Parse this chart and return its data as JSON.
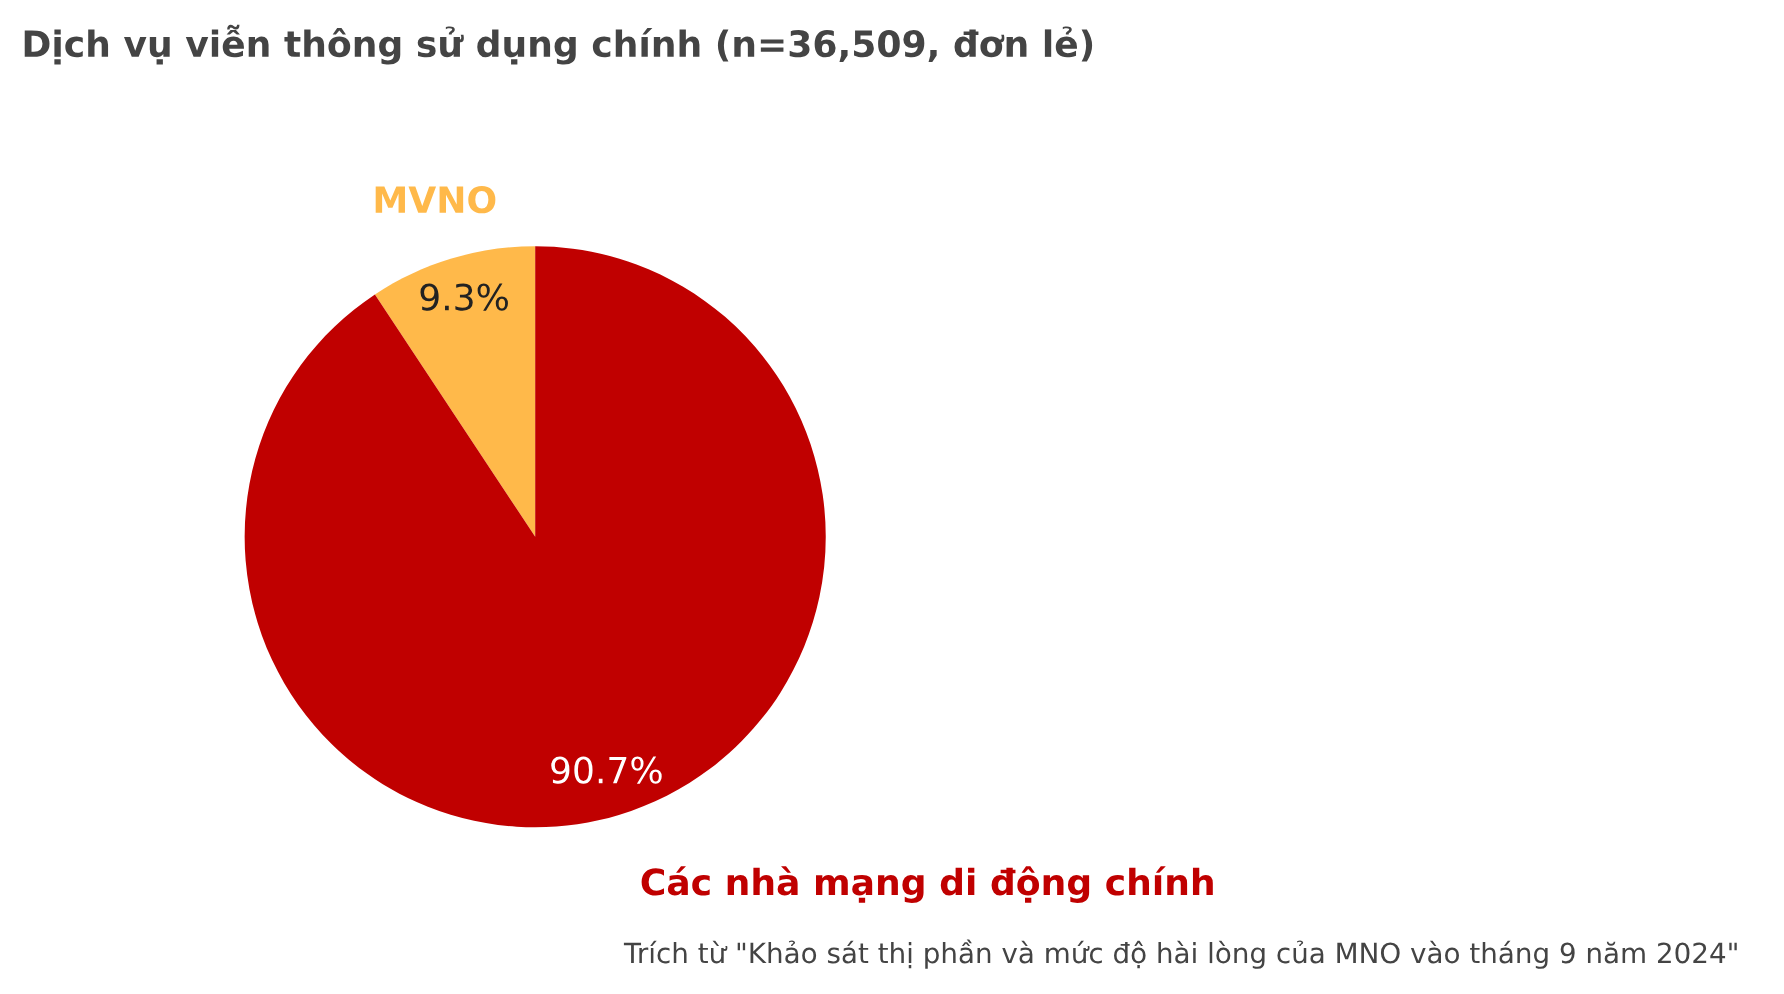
{
  "chart_data": {
    "type": "pie",
    "title": "Dịch vụ viễn thông sử dụng chính (n=36,509, đơn lẻ)",
    "categories": [
      "MVNO",
      "Các nhà mạng di động chính"
    ],
    "values": [
      9.3,
      90.7
    ],
    "colors": [
      "#ffb94a",
      "#c00000"
    ],
    "value_labels": [
      "9.3%",
      "90.7%"
    ],
    "annotations": [
      "Trích từ \"Khảo sát thị phần và mức độ hài lòng của MNO vào tháng 9 năm 2024\""
    ]
  }
}
